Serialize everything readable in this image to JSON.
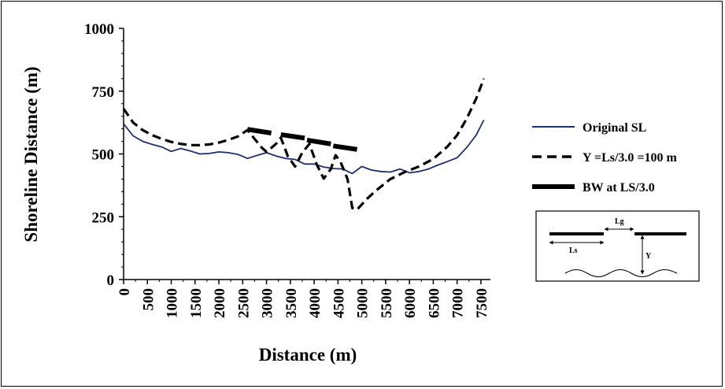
{
  "chart_data": {
    "type": "line",
    "xlabel": "Distance (m)",
    "ylabel": "Shoreline Distance (m)",
    "xlim": [
      0,
      7600
    ],
    "ylim": [
      0,
      1000
    ],
    "x_ticks": [
      "0",
      "500",
      "1000",
      "1500",
      "2000",
      "2500",
      "3000",
      "3500",
      "4000",
      "4500",
      "5000",
      "5500",
      "6000",
      "6500",
      "7000",
      "7500"
    ],
    "y_ticks": [
      "0",
      "250",
      "500",
      "750",
      "1000"
    ],
    "grid": false,
    "legend_position": "right",
    "series": [
      {
        "name": "Original SL",
        "color": "#1f2f6e",
        "style": "solid",
        "x": [
          0,
          200,
          400,
          600,
          800,
          1000,
          1200,
          1400,
          1600,
          1800,
          2000,
          2200,
          2400,
          2600,
          2800,
          3000,
          3200,
          3400,
          3600,
          3800,
          4000,
          4200,
          4400,
          4600,
          4800,
          5000,
          5200,
          5400,
          5600,
          5800,
          6000,
          6200,
          6400,
          6600,
          6800,
          7000,
          7200,
          7400,
          7560
        ],
        "y": [
          620,
          572,
          550,
          538,
          528,
          510,
          522,
          512,
          500,
          502,
          508,
          505,
          498,
          482,
          494,
          505,
          492,
          482,
          478,
          460,
          460,
          448,
          442,
          440,
          422,
          450,
          436,
          430,
          428,
          440,
          425,
          430,
          440,
          456,
          470,
          485,
          525,
          575,
          635
        ]
      },
      {
        "name": "Y =Ls/3.0 =100 m",
        "color": "#000000",
        "style": "dashed",
        "x": [
          0,
          200,
          400,
          600,
          800,
          1000,
          1200,
          1400,
          1600,
          1800,
          2000,
          2200,
          2400,
          2600,
          2750,
          2900,
          3000,
          3200,
          3300,
          3450,
          3600,
          3750,
          3900,
          4050,
          4200,
          4350,
          4450,
          4550,
          4700,
          4800,
          4900,
          5100,
          5300,
          5600,
          5900,
          6200,
          6500,
          6800,
          7000,
          7200,
          7400,
          7560
        ],
        "y": [
          680,
          625,
          595,
          575,
          560,
          548,
          540,
          535,
          535,
          538,
          545,
          556,
          570,
          595,
          560,
          525,
          508,
          540,
          565,
          490,
          450,
          505,
          540,
          460,
          402,
          440,
          495,
          470,
          400,
          285,
          278,
          320,
          355,
          400,
          428,
          450,
          480,
          530,
          575,
          640,
          720,
          800
        ],
        "note": "Y =Ls/3.0 =100 m"
      },
      {
        "name": "BW at LS/3.0",
        "color": "#000000",
        "style": "thick",
        "segments": [
          {
            "x": [
              2600,
              3100
            ],
            "y": [
              598,
              583
            ]
          },
          {
            "x": [
              3300,
              3800
            ],
            "y": [
              577,
              563
            ]
          },
          {
            "x": [
              3850,
              4350
            ],
            "y": [
              555,
              540
            ]
          },
          {
            "x": [
              4400,
              4900
            ],
            "y": [
              532,
              518
            ]
          }
        ]
      }
    ]
  },
  "inset": {
    "labels": {
      "lg": "Lg",
      "ls": "Ls",
      "y": "Y"
    }
  }
}
